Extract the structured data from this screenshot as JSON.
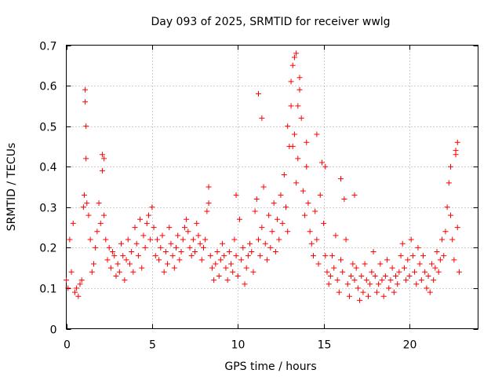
{
  "chart_data": {
    "type": "scatter",
    "title": "Day 093 of 2025, SRMTID for receiver wwlg",
    "xlabel": "GPS time / hours",
    "ylabel": "SRMTID / TECUs",
    "xlim": [
      0,
      24
    ],
    "ylim": [
      0,
      0.7
    ],
    "xticks": [
      0,
      5,
      10,
      15,
      20
    ],
    "xtick_labels": [
      "0",
      "5",
      "10",
      "15",
      "20"
    ],
    "yticks": [
      0,
      0.1,
      0.2,
      0.3,
      0.4,
      0.5,
      0.6,
      0.7
    ],
    "ytick_labels": [
      "0",
      "0.1",
      "0.2",
      "0.3",
      "0.4",
      "0.5",
      "0.6",
      "0.7"
    ],
    "grid": true,
    "marker": "plus",
    "color": "#ff0000",
    "series": [
      {
        "name": "SRMTID",
        "x": [
          0.0,
          0.1,
          0.2,
          0.3,
          0.4,
          0.5,
          0.6,
          0.7,
          0.8,
          0.9,
          1.0,
          1.05,
          1.1,
          1.15,
          1.2,
          1.3,
          1.4,
          1.5,
          1.6,
          1.7,
          1.8,
          1.9,
          2.0,
          2.1,
          2.2,
          2.3,
          2.4,
          2.5,
          2.6,
          2.7,
          2.8,
          2.9,
          3.0,
          3.1,
          3.2,
          3.3,
          3.4,
          3.5,
          3.6,
          3.7,
          3.8,
          3.9,
          4.0,
          4.1,
          4.2,
          4.3,
          4.4,
          4.5,
          4.6,
          4.7,
          4.8,
          4.9,
          5.0,
          5.1,
          5.2,
          5.3,
          5.4,
          5.5,
          5.6,
          5.7,
          5.8,
          5.9,
          6.0,
          6.1,
          6.2,
          6.3,
          6.4,
          6.5,
          6.6,
          6.7,
          6.8,
          6.9,
          7.0,
          7.1,
          7.2,
          7.3,
          7.4,
          7.5,
          7.6,
          7.7,
          7.8,
          7.9,
          8.0,
          8.1,
          8.2,
          8.3,
          8.4,
          8.5,
          8.6,
          8.7,
          8.8,
          8.9,
          9.0,
          9.1,
          9.2,
          9.3,
          9.4,
          9.5,
          9.6,
          9.7,
          9.8,
          9.9,
          10.0,
          10.1,
          10.2,
          10.3,
          10.4,
          10.5,
          10.6,
          10.7,
          10.8,
          10.9,
          11.0,
          11.1,
          11.2,
          11.3,
          11.4,
          11.5,
          11.6,
          11.7,
          11.8,
          11.9,
          12.0,
          12.1,
          12.2,
          12.3,
          12.4,
          12.5,
          12.6,
          12.7,
          12.8,
          12.9,
          13.0,
          13.1,
          13.2,
          13.3,
          13.4,
          13.5,
          13.6,
          13.7,
          13.8,
          13.9,
          14.0,
          14.1,
          14.2,
          14.3,
          14.4,
          14.5,
          14.6,
          14.7,
          14.8,
          14.9,
          15.0,
          15.1,
          15.2,
          15.3,
          15.4,
          15.5,
          15.6,
          15.7,
          15.8,
          15.9,
          16.0,
          16.1,
          16.2,
          16.3,
          16.4,
          16.5,
          16.6,
          16.7,
          16.8,
          16.9,
          17.0,
          17.1,
          17.2,
          17.3,
          17.4,
          17.5,
          17.6,
          17.7,
          17.8,
          17.9,
          18.0,
          18.1,
          18.2,
          18.3,
          18.4,
          18.5,
          18.6,
          18.7,
          18.8,
          18.9,
          19.0,
          19.1,
          19.2,
          19.3,
          19.4,
          19.5,
          19.6,
          19.7,
          19.8,
          19.9,
          20.0,
          20.1,
          20.2,
          20.3,
          20.4,
          20.5,
          20.6,
          20.7,
          20.8,
          20.9,
          21.0,
          21.1,
          21.2,
          21.3,
          21.4,
          21.5,
          21.6,
          21.7,
          21.8,
          21.9,
          22.0,
          22.1,
          22.2,
          22.3,
          22.4,
          22.5,
          22.6,
          22.7,
          22.8,
          22.9,
          1.1,
          1.15,
          2.1,
          2.2,
          8.3,
          9.9,
          11.2,
          11.4,
          12.9,
          13.1,
          13.3,
          13.4,
          13.5,
          13.2,
          13.6,
          14.0,
          14.6,
          15.1,
          16.0,
          16.8,
          22.4,
          22.7,
          22.8
        ],
        "y": [
          0.12,
          0.1,
          0.22,
          0.14,
          0.26,
          0.09,
          0.1,
          0.08,
          0.11,
          0.12,
          0.3,
          0.33,
          0.56,
          0.42,
          0.31,
          0.28,
          0.22,
          0.14,
          0.16,
          0.2,
          0.24,
          0.31,
          0.26,
          0.39,
          0.28,
          0.22,
          0.17,
          0.2,
          0.15,
          0.19,
          0.18,
          0.13,
          0.16,
          0.14,
          0.21,
          0.18,
          0.12,
          0.17,
          0.22,
          0.16,
          0.19,
          0.14,
          0.25,
          0.21,
          0.18,
          0.27,
          0.15,
          0.23,
          0.2,
          0.26,
          0.28,
          0.22,
          0.3,
          0.25,
          0.18,
          0.22,
          0.17,
          0.2,
          0.23,
          0.14,
          0.19,
          0.16,
          0.25,
          0.21,
          0.18,
          0.15,
          0.2,
          0.23,
          0.17,
          0.19,
          0.22,
          0.25,
          0.27,
          0.24,
          0.2,
          0.18,
          0.22,
          0.19,
          0.26,
          0.23,
          0.21,
          0.17,
          0.2,
          0.22,
          0.29,
          0.31,
          0.18,
          0.15,
          0.12,
          0.16,
          0.19,
          0.13,
          0.17,
          0.21,
          0.18,
          0.15,
          0.12,
          0.19,
          0.16,
          0.14,
          0.22,
          0.18,
          0.13,
          0.27,
          0.17,
          0.2,
          0.11,
          0.15,
          0.18,
          0.21,
          0.19,
          0.14,
          0.29,
          0.32,
          0.22,
          0.18,
          0.25,
          0.35,
          0.21,
          0.17,
          0.28,
          0.2,
          0.24,
          0.31,
          0.19,
          0.27,
          0.22,
          0.33,
          0.26,
          0.38,
          0.3,
          0.24,
          0.45,
          0.55,
          0.65,
          0.48,
          0.36,
          0.42,
          0.62,
          0.52,
          0.34,
          0.28,
          0.4,
          0.31,
          0.24,
          0.21,
          0.18,
          0.29,
          0.22,
          0.16,
          0.33,
          0.41,
          0.26,
          0.18,
          0.14,
          0.11,
          0.13,
          0.18,
          0.15,
          0.23,
          0.12,
          0.09,
          0.17,
          0.14,
          0.32,
          0.22,
          0.11,
          0.08,
          0.13,
          0.16,
          0.12,
          0.15,
          0.1,
          0.07,
          0.13,
          0.09,
          0.16,
          0.12,
          0.08,
          0.11,
          0.14,
          0.19,
          0.13,
          0.09,
          0.11,
          0.16,
          0.12,
          0.08,
          0.13,
          0.17,
          0.1,
          0.12,
          0.15,
          0.09,
          0.13,
          0.11,
          0.14,
          0.18,
          0.21,
          0.15,
          0.12,
          0.17,
          0.13,
          0.22,
          0.18,
          0.14,
          0.11,
          0.2,
          0.16,
          0.12,
          0.18,
          0.14,
          0.1,
          0.13,
          0.09,
          0.16,
          0.12,
          0.15,
          0.19,
          0.14,
          0.17,
          0.22,
          0.18,
          0.24,
          0.3,
          0.36,
          0.28,
          0.22,
          0.17,
          0.43,
          0.25,
          0.14,
          0.59,
          0.5,
          0.43,
          0.42,
          0.35,
          0.33,
          0.58,
          0.52,
          0.5,
          0.61,
          0.67,
          0.68,
          0.55,
          0.45,
          0.59,
          0.46,
          0.48,
          0.4,
          0.37,
          0.33,
          0.4,
          0.44,
          0.46
        ]
      }
    ]
  }
}
